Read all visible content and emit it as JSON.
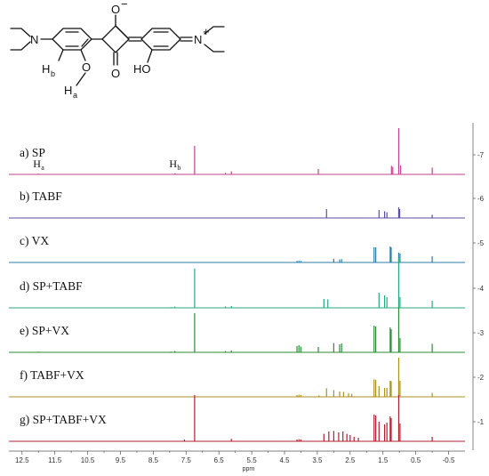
{
  "structure": {
    "atoms": {
      "n_left": "N",
      "o_minus": "O",
      "o_minus_charge": "−",
      "o_ketone": "O",
      "o_ether": "O",
      "hb": "H",
      "hb_sub": "b",
      "ha": "H",
      "ha_sub": "a",
      "ho": "HO",
      "n_right": "N",
      "n_right_charge": "+"
    }
  },
  "chart_data": {
    "type": "line",
    "title": "",
    "xlabel": "ppm",
    "ylabel": "",
    "xlim": [
      12.9,
      -1.0
    ],
    "x_reversed": true,
    "x_ticks": [
      "12.5",
      "11.5",
      "10.5",
      "9.5",
      "8.5",
      "7.5",
      "6.5",
      "5.5",
      "4.5",
      "3.5",
      "2.5",
      "1.5",
      "0.5",
      "-0.5"
    ],
    "right_axis_labels": [
      "7",
      "6",
      "5",
      "4",
      "3",
      "2",
      "1"
    ],
    "peak_annotations": [
      {
        "label": "H",
        "sub": "a",
        "ppm": 12.0,
        "trace": "a"
      },
      {
        "label": "H",
        "sub": "b",
        "ppm": 7.85,
        "trace": "a"
      }
    ],
    "series": [
      {
        "name": "a) SP",
        "trace_number": "7",
        "color": "#c0438d",
        "peaks": [
          [
            12.0,
            0.04
          ],
          [
            7.84,
            0.06
          ],
          [
            7.24,
            1.6
          ],
          [
            6.3,
            0.09
          ],
          [
            6.12,
            0.17
          ],
          [
            3.47,
            0.3
          ],
          [
            1.24,
            0.48
          ],
          [
            1.2,
            0.42
          ],
          [
            1.02,
            2.6
          ],
          [
            0.96,
            0.5
          ],
          [
            0.0,
            0.38
          ]
        ]
      },
      {
        "name": "b) TABF",
        "trace_number": "6",
        "color": "#5a4ea3",
        "peaks": [
          [
            3.22,
            0.5
          ],
          [
            1.62,
            0.45
          ],
          [
            1.45,
            0.38
          ],
          [
            1.38,
            0.32
          ],
          [
            1.02,
            0.6
          ],
          [
            0.99,
            0.5
          ],
          [
            0.0,
            0.18
          ]
        ]
      },
      {
        "name": "c) VX",
        "trace_number": "5",
        "color": "#2c7ea6",
        "peaks": [
          [
            4.12,
            0.09
          ],
          [
            4.06,
            0.11
          ],
          [
            4.0,
            0.09
          ],
          [
            3.0,
            0.21
          ],
          [
            2.82,
            0.17
          ],
          [
            2.76,
            0.19
          ],
          [
            1.77,
            0.85
          ],
          [
            1.72,
            0.85
          ],
          [
            1.28,
            0.9
          ],
          [
            1.25,
            0.85
          ],
          [
            1.02,
            0.55
          ],
          [
            0.98,
            0.5
          ],
          [
            0.0,
            0.35
          ]
        ]
      },
      {
        "name": "d) SP+TABF",
        "trace_number": "4",
        "color": "#2aa87d",
        "peaks": [
          [
            7.96,
            0.04
          ],
          [
            7.84,
            0.07
          ],
          [
            7.24,
            2.2
          ],
          [
            6.3,
            0.08
          ],
          [
            6.12,
            0.1
          ],
          [
            3.3,
            0.5
          ],
          [
            3.18,
            0.48
          ],
          [
            1.62,
            0.85
          ],
          [
            1.45,
            0.7
          ],
          [
            1.38,
            0.6
          ],
          [
            1.02,
            2.8
          ],
          [
            0.98,
            0.6
          ],
          [
            0.0,
            0.4
          ]
        ]
      },
      {
        "name": "e) SP+VX",
        "trace_number": "3",
        "color": "#2e8b3a",
        "peaks": [
          [
            12.0,
            0.04
          ],
          [
            7.96,
            0.04
          ],
          [
            7.84,
            0.07
          ],
          [
            7.24,
            2.2
          ],
          [
            6.3,
            0.07
          ],
          [
            6.12,
            0.1
          ],
          [
            4.12,
            0.35
          ],
          [
            4.06,
            0.4
          ],
          [
            4.0,
            0.32
          ],
          [
            3.47,
            0.3
          ],
          [
            3.0,
            0.52
          ],
          [
            2.82,
            0.45
          ],
          [
            2.76,
            0.5
          ],
          [
            1.77,
            1.5
          ],
          [
            1.72,
            1.45
          ],
          [
            1.28,
            1.4
          ],
          [
            1.25,
            1.3
          ],
          [
            1.02,
            2.5
          ],
          [
            0.98,
            0.8
          ],
          [
            0.0,
            0.48
          ]
        ]
      },
      {
        "name": "f) TABF+VX",
        "trace_number": "2",
        "color": "#a99022",
        "peaks": [
          [
            4.12,
            0.1
          ],
          [
            4.06,
            0.12
          ],
          [
            4.0,
            0.1
          ],
          [
            3.45,
            0.08
          ],
          [
            3.22,
            0.48
          ],
          [
            3.0,
            0.38
          ],
          [
            2.82,
            0.3
          ],
          [
            2.7,
            0.28
          ],
          [
            2.55,
            0.2
          ],
          [
            2.45,
            0.16
          ],
          [
            1.77,
            0.98
          ],
          [
            1.72,
            0.95
          ],
          [
            1.62,
            0.6
          ],
          [
            1.45,
            0.5
          ],
          [
            1.38,
            0.5
          ],
          [
            1.28,
            0.9
          ],
          [
            1.25,
            0.88
          ],
          [
            1.02,
            2.2
          ],
          [
            0.98,
            0.9
          ],
          [
            0.0,
            0.22
          ]
        ]
      },
      {
        "name": "g) SP+TABF+VX",
        "trace_number": "1",
        "color": "#b1202e",
        "peaks": [
          [
            7.55,
            0.1
          ],
          [
            7.24,
            2.6
          ],
          [
            6.12,
            0.14
          ],
          [
            4.12,
            0.1
          ],
          [
            4.06,
            0.12
          ],
          [
            4.0,
            0.1
          ],
          [
            3.3,
            0.42
          ],
          [
            3.15,
            0.55
          ],
          [
            3.0,
            0.58
          ],
          [
            2.85,
            0.5
          ],
          [
            2.72,
            0.55
          ],
          [
            2.6,
            0.42
          ],
          [
            2.5,
            0.35
          ],
          [
            2.38,
            0.25
          ],
          [
            2.25,
            0.2
          ],
          [
            1.77,
            1.5
          ],
          [
            1.72,
            1.45
          ],
          [
            1.62,
            1.1
          ],
          [
            1.45,
            0.95
          ],
          [
            1.38,
            1.05
          ],
          [
            1.28,
            1.4
          ],
          [
            1.25,
            1.3
          ],
          [
            1.02,
            2.6
          ],
          [
            0.98,
            1.0
          ],
          [
            0.0,
            0.25
          ]
        ]
      }
    ]
  }
}
